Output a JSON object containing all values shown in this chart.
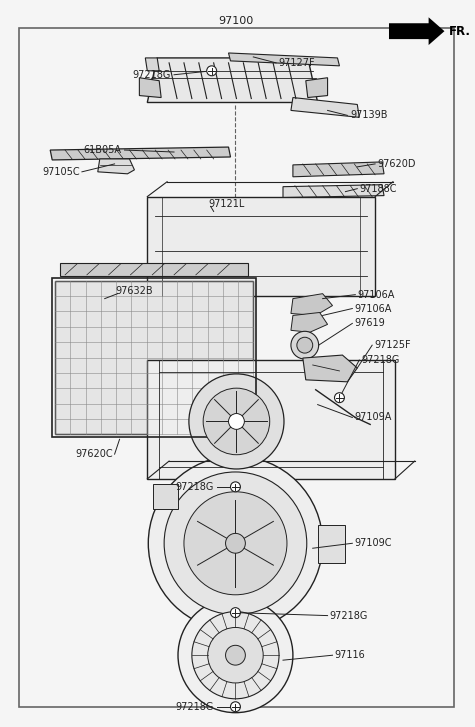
{
  "bg_color": "#f5f5f5",
  "border_color": "#555555",
  "lc": "#222222",
  "fig_w": 4.75,
  "fig_h": 7.27,
  "dpi": 100,
  "xlim": [
    0,
    475
  ],
  "ylim": [
    0,
    727
  ]
}
